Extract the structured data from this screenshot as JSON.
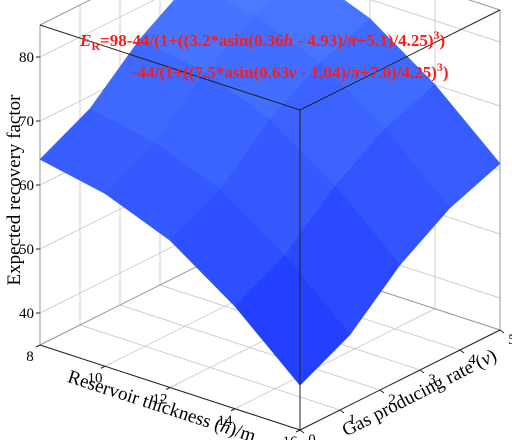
{
  "chart_data": {
    "type": "surface",
    "annotation": {
      "line1": [
        "E",
        "R",
        "=98-44/(1+((3.2*asin(0.36",
        "h",
        " - 4.93)/",
        "π",
        "+5.1)/4.25)",
        "3",
        ")"
      ],
      "line2": [
        "-44/(1+((7.5*asin(0.63",
        "v",
        " - 1.04)/",
        "π",
        "+7.0)/4.25)",
        "3",
        ")"
      ]
    },
    "xlabel": [
      "Reservoir thickness (",
      "h",
      ")/m"
    ],
    "ylabel": [
      "Gas producing rate (",
      "v",
      ")"
    ],
    "zlabel": "Expected recovery factor",
    "x": [
      8,
      10,
      12,
      14,
      16
    ],
    "y": [
      0,
      1.25,
      2.5,
      3.75,
      5
    ],
    "z": [
      [
        64,
        68,
        75,
        80,
        83
      ],
      [
        62,
        66,
        73,
        78,
        81
      ],
      [
        58,
        62,
        69,
        74,
        77
      ],
      [
        51,
        55,
        62,
        67,
        70
      ],
      [
        42,
        46,
        53,
        58,
        61
      ]
    ],
    "xlim": [
      8,
      16
    ],
    "xticks": [
      8,
      10,
      12,
      14,
      16
    ],
    "ylim": [
      0,
      5
    ],
    "yticks": [
      0,
      1,
      2,
      3,
      4,
      5
    ],
    "zlim": [
      35,
      85
    ],
    "zticks": [
      40,
      50,
      60,
      70,
      80
    ],
    "color": "#1f4fff",
    "grid": true
  }
}
